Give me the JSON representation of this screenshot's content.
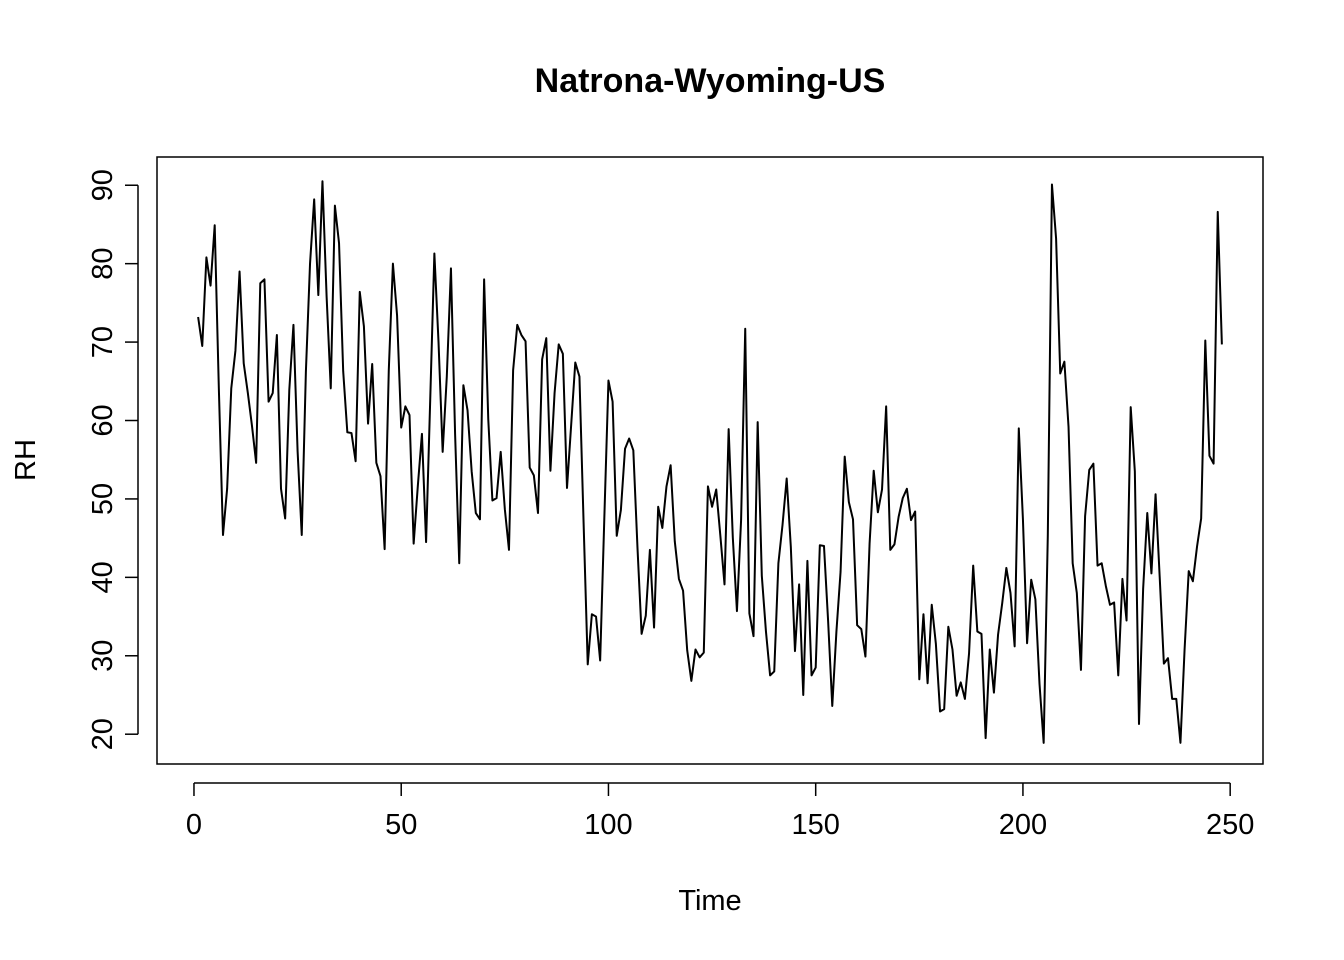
{
  "chart_data": {
    "type": "line",
    "title": "Natrona-Wyoming-US",
    "xlabel": "Time",
    "ylabel": "RH",
    "xlim": [
      -8.92,
      257.92
    ],
    "ylim": [
      16.2,
      93.6
    ],
    "xticks": [
      0,
      50,
      100,
      150,
      200,
      250
    ],
    "yticks": [
      20,
      30,
      40,
      50,
      60,
      70,
      80,
      90
    ],
    "grid": false,
    "line_color": "#000000",
    "series": [
      {
        "x": [
          1,
          2,
          3,
          4,
          5,
          6,
          7,
          8,
          9,
          10,
          11,
          12,
          13,
          14,
          15,
          16,
          17,
          18,
          19,
          20,
          21,
          22,
          23,
          24,
          25,
          26,
          27,
          28,
          29,
          30,
          31,
          32,
          33,
          34,
          35,
          36,
          37,
          38,
          39,
          40,
          41,
          42,
          43,
          44,
          45,
          46,
          47,
          48,
          49,
          50,
          51,
          52,
          53,
          54,
          55,
          56,
          57,
          58,
          59,
          60,
          61,
          62,
          63,
          64,
          65,
          66,
          67,
          68,
          69,
          70,
          71,
          72,
          73,
          74,
          75,
          76,
          77,
          78,
          79,
          80,
          81,
          82,
          83,
          84,
          85,
          86,
          87,
          88,
          89,
          90,
          91,
          92,
          93,
          94,
          95,
          96,
          97,
          98,
          99,
          100,
          101,
          102,
          103,
          104,
          105,
          106,
          107,
          108,
          109,
          110,
          111,
          112,
          113,
          114,
          115,
          116,
          117,
          118,
          119,
          120,
          121,
          122,
          123,
          124,
          125,
          126,
          127,
          128,
          129,
          130,
          131,
          132,
          133,
          134,
          135,
          136,
          137,
          138,
          139,
          140,
          141,
          142,
          143,
          144,
          145,
          146,
          147,
          148,
          149,
          150,
          151,
          152,
          153,
          154,
          155,
          156,
          157,
          158,
          159,
          160,
          161,
          162,
          163,
          164,
          165,
          166,
          167,
          168,
          169,
          170,
          171,
          172,
          173,
          174,
          175,
          176,
          177,
          178,
          179,
          180,
          181,
          182,
          183,
          184,
          185,
          186,
          187,
          188,
          189,
          190,
          191,
          192,
          193,
          194,
          195,
          196,
          197,
          198,
          199,
          200,
          201,
          202,
          203,
          204,
          205,
          206,
          207,
          208,
          209,
          210,
          211,
          212,
          213,
          214,
          215,
          216,
          217,
          218,
          219,
          220,
          221,
          222,
          223,
          224,
          225,
          226,
          227,
          228,
          229,
          230,
          231,
          232,
          233,
          234,
          235,
          236,
          237,
          238,
          239,
          240,
          241,
          242,
          243,
          244,
          245,
          246,
          247,
          248
        ],
        "values": [
          73.2,
          69.5,
          80.8,
          77.2,
          84.9,
          64.1,
          45.4,
          51.3,
          64.1,
          68.9,
          79.0,
          67.3,
          63.5,
          59.3,
          54.6,
          77.5,
          78.0,
          62.4,
          63.5,
          70.9,
          51.3,
          47.5,
          63.9,
          72.2,
          56.1,
          45.4,
          66.2,
          80.0,
          88.2,
          76.0,
          90.5,
          75.8,
          64.1,
          87.4,
          82.6,
          66.3,
          58.5,
          58.4,
          54.8,
          76.4,
          72.0,
          59.6,
          67.2,
          54.6,
          52.9,
          43.6,
          66.4,
          80.0,
          73.4,
          59.1,
          61.8,
          60.7,
          44.3,
          51.6,
          58.3,
          44.5,
          62.7,
          81.3,
          70.0,
          56.0,
          65.6,
          79.4,
          58.3,
          41.8,
          64.5,
          61.3,
          53.5,
          48.2,
          47.4,
          78.0,
          60.2,
          49.8,
          50.1,
          56.0,
          48.7,
          43.5,
          66.4,
          72.2,
          70.9,
          70.1,
          54.0,
          53.0,
          48.2,
          67.8,
          70.5,
          53.6,
          63.5,
          69.7,
          68.5,
          51.4,
          59.4,
          67.4,
          65.6,
          47.0,
          28.9,
          35.3,
          35.0,
          29.4,
          47.5,
          65.1,
          62.4,
          45.3,
          48.6,
          56.4,
          57.7,
          56.2,
          43.8,
          32.8,
          35.1,
          43.5,
          33.6,
          49.0,
          46.3,
          51.6,
          54.3,
          44.6,
          39.8,
          38.3,
          30.7,
          26.8,
          30.8,
          29.8,
          30.4,
          51.6,
          49.0,
          51.2,
          45.3,
          39.1,
          58.9,
          45.1,
          35.7,
          47.3,
          71.7,
          35.4,
          32.5,
          59.8,
          40.2,
          33.1,
          27.5,
          28.0,
          41.8,
          46.7,
          52.6,
          43.9,
          30.6,
          39.1,
          25.0,
          42.1,
          27.5,
          28.5,
          44.1,
          44.0,
          34.4,
          23.6,
          33.1,
          40.7,
          55.4,
          49.6,
          47.4,
          33.9,
          33.4,
          29.9,
          44.3,
          53.6,
          48.3,
          51.2,
          61.8,
          43.5,
          44.2,
          47.7,
          50.1,
          51.3,
          47.3,
          48.4,
          27.0,
          35.3,
          26.5,
          36.5,
          31.5,
          22.9,
          23.2,
          33.7,
          30.8,
          24.9,
          26.6,
          24.5,
          30.3,
          41.5,
          33.1,
          32.8,
          19.5,
          30.8,
          25.3,
          32.7,
          36.7,
          41.2,
          38.0,
          31.2,
          59.0,
          47.4,
          31.6,
          39.7,
          37.2,
          26.4,
          18.9,
          45.3,
          90.1,
          83.2,
          66.0,
          67.5,
          59.2,
          41.8,
          38.0,
          28.2,
          47.8,
          53.7,
          54.5,
          41.5,
          41.8,
          38.9,
          36.5,
          36.8,
          27.5,
          39.8,
          34.5,
          61.7,
          53.5,
          21.3,
          38.5,
          48.2,
          40.5,
          50.6,
          40.0,
          29.0,
          29.7,
          24.5,
          24.5,
          18.9,
          30.8,
          40.8,
          39.5,
          43.9,
          47.5,
          70.2,
          55.5,
          54.5,
          86.6,
          69.7
        ]
      }
    ]
  }
}
